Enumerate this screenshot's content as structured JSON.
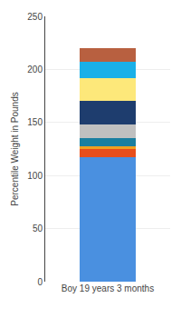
{
  "chart_data": {
    "type": "bar",
    "stacked": true,
    "categories": [
      "Boy 19 years 3 months"
    ],
    "ylabel": "Percentile Weight in Pounds",
    "series": [
      {
        "color": "#4a90e0",
        "values": [
          117
        ]
      },
      {
        "color": "#e84e1b",
        "values": [
          8
        ]
      },
      {
        "color": "#f0a020",
        "values": [
          3
        ]
      },
      {
        "color": "#1a7fa0",
        "values": [
          7
        ]
      },
      {
        "color": "#c0c0c0",
        "values": [
          13
        ]
      },
      {
        "color": "#1e3d6e",
        "values": [
          22
        ]
      },
      {
        "color": "#fde87a",
        "values": [
          22
        ]
      },
      {
        "color": "#1ab0e8",
        "values": [
          15
        ]
      },
      {
        "color": "#b86040",
        "values": [
          13
        ]
      }
    ],
    "ylim": [
      0,
      250
    ],
    "yticks": [
      0,
      50,
      100,
      150,
      200,
      250
    ],
    "grid": true
  }
}
